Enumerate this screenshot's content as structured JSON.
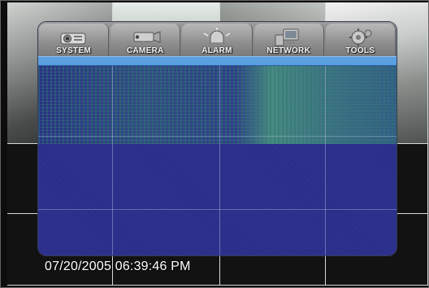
{
  "menu": {
    "tabs": [
      {
        "label": "SYSTEM",
        "icon": "projector-icon"
      },
      {
        "label": "CAMERA",
        "icon": "camera-icon"
      },
      {
        "label": "ALARM",
        "icon": "siren-icon"
      },
      {
        "label": "NETWORK",
        "icon": "network-icon"
      },
      {
        "label": "TOOLS",
        "icon": "tools-icon"
      }
    ],
    "highlight_color": "#5a9fe0",
    "panel_color": "#2b2f8a"
  },
  "overlay": {
    "timestamp": "07/20/2005 06:39:46 PM"
  }
}
